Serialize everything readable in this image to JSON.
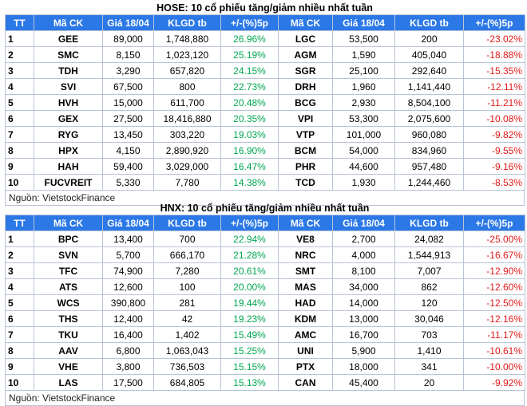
{
  "hose": {
    "title": "HOSE: 10 cổ phiếu tăng/giảm nhiều nhất tuần",
    "headers": [
      "TT",
      "Mã CK",
      "Giá 18/04",
      "KLGD tb",
      "+/-(%)5p",
      "Mã CK",
      "Giá 18/04",
      "KLGD tb",
      "+/-(%)5p"
    ],
    "rows": [
      {
        "tt": "1",
        "up_code": "GEE",
        "up_price": "89,000",
        "up_vol": "1,748,880",
        "up_pct": "26.96%",
        "dn_code": "LGC",
        "dn_price": "53,500",
        "dn_vol": "200",
        "dn_pct": "-23.02%"
      },
      {
        "tt": "2",
        "up_code": "SMC",
        "up_price": "8,150",
        "up_vol": "1,023,120",
        "up_pct": "25.19%",
        "dn_code": "AGM",
        "dn_price": "1,590",
        "dn_vol": "405,040",
        "dn_pct": "-18.88%"
      },
      {
        "tt": "3",
        "up_code": "TDH",
        "up_price": "3,290",
        "up_vol": "657,820",
        "up_pct": "24.15%",
        "dn_code": "SGR",
        "dn_price": "25,100",
        "dn_vol": "292,640",
        "dn_pct": "-15.35%"
      },
      {
        "tt": "4",
        "up_code": "SVI",
        "up_price": "67,500",
        "up_vol": "800",
        "up_pct": "22.73%",
        "dn_code": "DRH",
        "dn_price": "1,960",
        "dn_vol": "1,141,440",
        "dn_pct": "-12.11%"
      },
      {
        "tt": "5",
        "up_code": "HVH",
        "up_price": "15,000",
        "up_vol": "611,700",
        "up_pct": "20.48%",
        "dn_code": "BCG",
        "dn_price": "2,930",
        "dn_vol": "8,504,100",
        "dn_pct": "-11.21%"
      },
      {
        "tt": "6",
        "up_code": "GEX",
        "up_price": "27,500",
        "up_vol": "18,416,880",
        "up_pct": "20.35%",
        "dn_code": "VPI",
        "dn_price": "53,300",
        "dn_vol": "2,075,600",
        "dn_pct": "-10.08%"
      },
      {
        "tt": "7",
        "up_code": "RYG",
        "up_price": "13,450",
        "up_vol": "303,220",
        "up_pct": "19.03%",
        "dn_code": "VTP",
        "dn_price": "101,000",
        "dn_vol": "960,080",
        "dn_pct": "-9.82%"
      },
      {
        "tt": "8",
        "up_code": "HPX",
        "up_price": "4,150",
        "up_vol": "2,890,920",
        "up_pct": "16.90%",
        "dn_code": "BCM",
        "dn_price": "54,000",
        "dn_vol": "834,960",
        "dn_pct": "-9.55%"
      },
      {
        "tt": "9",
        "up_code": "HAH",
        "up_price": "59,400",
        "up_vol": "3,029,000",
        "up_pct": "16.47%",
        "dn_code": "PHR",
        "dn_price": "44,600",
        "dn_vol": "957,480",
        "dn_pct": "-9.16%"
      },
      {
        "tt": "10",
        "up_code": "FUCVREIT",
        "up_price": "5,330",
        "up_vol": "7,780",
        "up_pct": "14.38%",
        "dn_code": "TCD",
        "dn_price": "1,930",
        "dn_vol": "1,244,460",
        "dn_pct": "-8.53%"
      }
    ],
    "source": "Nguồn: VietstockFinance"
  },
  "hnx": {
    "title": "HNX: 10 cổ phiếu tăng/giảm nhiều nhất tuần",
    "headers": [
      "TT",
      "Mã CK",
      "Giá 18/04",
      "KLGD tb",
      "+/-(%)5p",
      "Mã CK",
      "Giá 18/04",
      "KLGD tb",
      "+/-(%)5p"
    ],
    "rows": [
      {
        "tt": "1",
        "up_code": "BPC",
        "up_price": "13,400",
        "up_vol": "700",
        "up_pct": "22.94%",
        "dn_code": "VE8",
        "dn_price": "2,700",
        "dn_vol": "24,082",
        "dn_pct": "-25.00%"
      },
      {
        "tt": "2",
        "up_code": "SVN",
        "up_price": "5,700",
        "up_vol": "666,170",
        "up_pct": "21.28%",
        "dn_code": "NRC",
        "dn_price": "4,000",
        "dn_vol": "1,544,913",
        "dn_pct": "-16.67%"
      },
      {
        "tt": "3",
        "up_code": "TFC",
        "up_price": "74,900",
        "up_vol": "7,280",
        "up_pct": "20.61%",
        "dn_code": "SMT",
        "dn_price": "8,100",
        "dn_vol": "7,007",
        "dn_pct": "-12.90%"
      },
      {
        "tt": "4",
        "up_code": "ATS",
        "up_price": "12,600",
        "up_vol": "100",
        "up_pct": "20.00%",
        "dn_code": "MAS",
        "dn_price": "34,000",
        "dn_vol": "862",
        "dn_pct": "-12.60%"
      },
      {
        "tt": "5",
        "up_code": "WCS",
        "up_price": "390,800",
        "up_vol": "281",
        "up_pct": "19.44%",
        "dn_code": "HAD",
        "dn_price": "14,000",
        "dn_vol": "120",
        "dn_pct": "-12.50%"
      },
      {
        "tt": "6",
        "up_code": "THS",
        "up_price": "12,400",
        "up_vol": "42",
        "up_pct": "19.23%",
        "dn_code": "KDM",
        "dn_price": "13,000",
        "dn_vol": "30,046",
        "dn_pct": "-12.16%"
      },
      {
        "tt": "7",
        "up_code": "TKU",
        "up_price": "16,400",
        "up_vol": "1,402",
        "up_pct": "15.49%",
        "dn_code": "AMC",
        "dn_price": "16,700",
        "dn_vol": "703",
        "dn_pct": "-11.17%"
      },
      {
        "tt": "8",
        "up_code": "AAV",
        "up_price": "6,800",
        "up_vol": "1,063,043",
        "up_pct": "15.25%",
        "dn_code": "UNI",
        "dn_price": "5,900",
        "dn_vol": "1,410",
        "dn_pct": "-10.61%"
      },
      {
        "tt": "9",
        "up_code": "VHE",
        "up_price": "3,800",
        "up_vol": "736,503",
        "up_pct": "15.15%",
        "dn_code": "PTX",
        "dn_price": "18,000",
        "dn_vol": "341",
        "dn_pct": "-10.00%"
      },
      {
        "tt": "10",
        "up_code": "LAS",
        "up_price": "17,500",
        "up_vol": "684,805",
        "up_pct": "15.13%",
        "dn_code": "CAN",
        "dn_price": "45,400",
        "dn_vol": "20",
        "dn_pct": "-9.92%"
      }
    ],
    "source": "Nguồn: VietstockFinance"
  },
  "colors": {
    "header_bg": "#2b78e6",
    "header_text": "#ffffff",
    "gain": "#00a650",
    "loss": "#e01b1b",
    "border": "#b9c4d6"
  }
}
